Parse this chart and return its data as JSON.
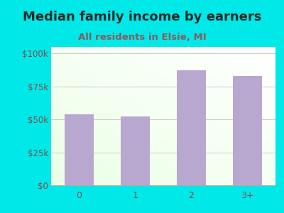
{
  "title": "Median family income by earners",
  "subtitle": "All residents in Elsie, MI",
  "categories": [
    "0",
    "1",
    "2",
    "3+"
  ],
  "values": [
    54000,
    52000,
    87000,
    83000
  ],
  "bar_color": "#b8a8d0",
  "title_color": "#2a2a2a",
  "subtitle_color": "#8b5a5a",
  "outer_bg_color": "#00e8e8",
  "yticks": [
    0,
    25000,
    50000,
    75000,
    100000
  ],
  "ytick_labels": [
    "$0",
    "$25k",
    "$50k",
    "$75k",
    "$100k"
  ],
  "ylim": [
    0,
    105000
  ],
  "tick_color": "#7a5050",
  "grid_color": "#cccccc",
  "title_fontsize": 13,
  "subtitle_fontsize": 9.5
}
